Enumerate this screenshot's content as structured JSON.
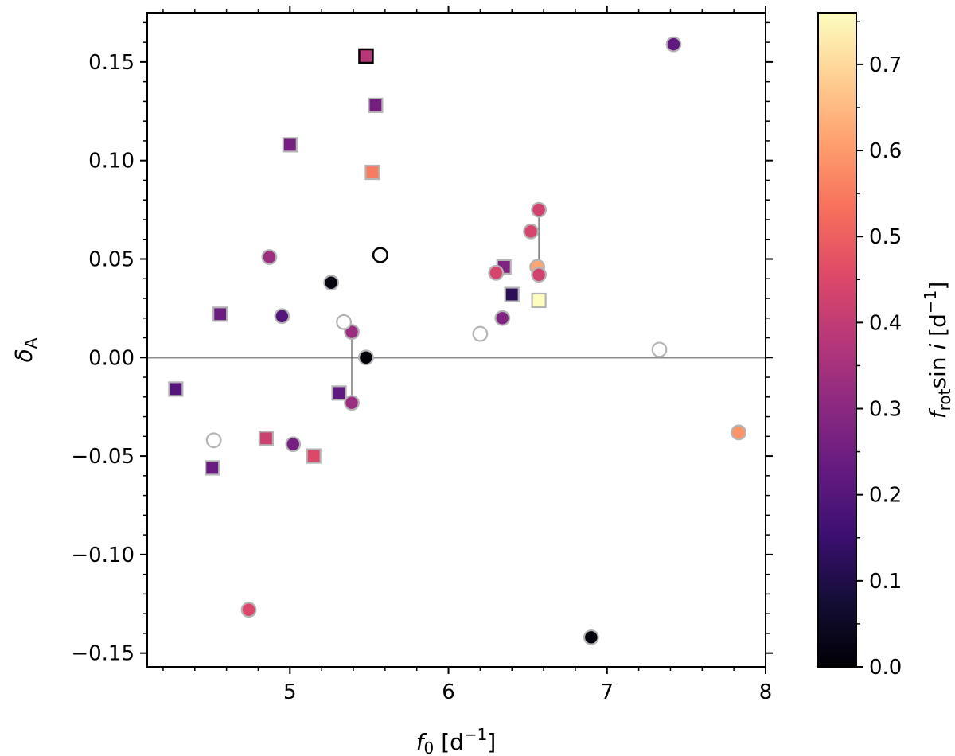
{
  "chart_data": {
    "type": "scatter",
    "title": "",
    "xlabel": {
      "var": "f",
      "sub": "0",
      "unit": "[d",
      "exp": "−1",
      "close": "]"
    },
    "ylabel": {
      "var": "δ",
      "sub": "A"
    },
    "xlim": [
      4.1,
      8.0
    ],
    "ylim": [
      -0.157,
      0.175
    ],
    "xticks": [
      {
        "value": 5,
        "label": "5"
      },
      {
        "value": 6,
        "label": "6"
      },
      {
        "value": 7,
        "label": "7"
      },
      {
        "value": 8,
        "label": "8"
      }
    ],
    "yticks": [
      {
        "value": 0.15,
        "label": "0.15"
      },
      {
        "value": 0.1,
        "label": "0.10"
      },
      {
        "value": 0.05,
        "label": "0.05"
      },
      {
        "value": 0.0,
        "label": "0.00"
      },
      {
        "value": -0.05,
        "label": "−0.05"
      },
      {
        "value": -0.1,
        "label": "−0.10"
      },
      {
        "value": -0.15,
        "label": "−0.15"
      }
    ],
    "reference_line_y": 0.0,
    "colorbar": {
      "label_var": "f",
      "label_sub": "rot",
      "label_mid": "sin ",
      "label_i": "i",
      "label_unit": " [d",
      "label_exp": "−1",
      "label_close": "]",
      "range": [
        0.0,
        0.76
      ],
      "ticks": [
        {
          "value": 0.0,
          "label": "0.0"
        },
        {
          "value": 0.1,
          "label": "0.1"
        },
        {
          "value": 0.2,
          "label": "0.2"
        },
        {
          "value": 0.3,
          "label": "0.3"
        },
        {
          "value": 0.4,
          "label": "0.4"
        },
        {
          "value": 0.5,
          "label": "0.5"
        },
        {
          "value": 0.6,
          "label": "0.6"
        },
        {
          "value": 0.7,
          "label": "0.7"
        }
      ],
      "colormap": "magma"
    },
    "points": [
      {
        "marker": "square",
        "x": 5.48,
        "y": 0.153,
        "c": 0.38,
        "edge": "black"
      },
      {
        "marker": "square",
        "x": 5.54,
        "y": 0.128,
        "c": 0.26,
        "edge": "gray"
      },
      {
        "marker": "square",
        "x": 5.0,
        "y": 0.108,
        "c": 0.26,
        "edge": "gray"
      },
      {
        "marker": "square",
        "x": 5.52,
        "y": 0.094,
        "c": 0.55,
        "edge": "gray"
      },
      {
        "marker": "square",
        "x": 6.35,
        "y": 0.046,
        "c": 0.28,
        "edge": "gray"
      },
      {
        "marker": "square",
        "x": 6.4,
        "y": 0.032,
        "c": 0.12,
        "edge": "gray"
      },
      {
        "marker": "square",
        "x": 6.57,
        "y": 0.029,
        "c": 0.76,
        "edge": "gray"
      },
      {
        "marker": "square",
        "x": 4.56,
        "y": 0.022,
        "c": 0.24,
        "edge": "gray"
      },
      {
        "marker": "square",
        "x": 4.28,
        "y": -0.016,
        "c": 0.2,
        "edge": "gray"
      },
      {
        "marker": "square",
        "x": 5.31,
        "y": -0.018,
        "c": 0.22,
        "edge": "gray"
      },
      {
        "marker": "square",
        "x": 4.85,
        "y": -0.041,
        "c": 0.42,
        "edge": "gray"
      },
      {
        "marker": "square",
        "x": 5.15,
        "y": -0.05,
        "c": 0.45,
        "edge": "gray"
      },
      {
        "marker": "square",
        "x": 4.51,
        "y": -0.056,
        "c": 0.24,
        "edge": "gray"
      },
      {
        "marker": "circle",
        "x": 7.42,
        "y": 0.159,
        "c": 0.22,
        "edge": "gray"
      },
      {
        "marker": "circle",
        "x": 6.57,
        "y": 0.075,
        "c": 0.43,
        "edge": "gray"
      },
      {
        "marker": "circle",
        "x": 6.52,
        "y": 0.064,
        "c": 0.44,
        "edge": "gray"
      },
      {
        "marker": "circle",
        "x": 4.87,
        "y": 0.051,
        "c": 0.33,
        "edge": "gray"
      },
      {
        "marker": "circle",
        "x": 6.56,
        "y": 0.046,
        "c": 0.62,
        "edge": "gray"
      },
      {
        "marker": "circle",
        "x": 6.3,
        "y": 0.043,
        "c": 0.44,
        "edge": "gray"
      },
      {
        "marker": "circle",
        "x": 6.57,
        "y": 0.042,
        "c": 0.43,
        "edge": "gray"
      },
      {
        "marker": "circle",
        "x": 5.26,
        "y": 0.038,
        "c": 0.02,
        "edge": "gray"
      },
      {
        "marker": "circle",
        "x": 4.95,
        "y": 0.021,
        "c": 0.2,
        "edge": "gray"
      },
      {
        "marker": "circle",
        "x": 6.34,
        "y": 0.02,
        "c": 0.28,
        "edge": "gray"
      },
      {
        "marker": "circle",
        "x": 5.39,
        "y": 0.013,
        "c": 0.33,
        "edge": "gray"
      },
      {
        "marker": "circle",
        "x": 5.48,
        "y": 0.0,
        "c": 0.01,
        "edge": "gray"
      },
      {
        "marker": "circle",
        "x": 5.39,
        "y": -0.023,
        "c": 0.33,
        "edge": "gray"
      },
      {
        "marker": "circle",
        "x": 5.02,
        "y": -0.044,
        "c": 0.26,
        "edge": "gray"
      },
      {
        "marker": "circle",
        "x": 7.83,
        "y": -0.038,
        "c": 0.59,
        "edge": "gray"
      },
      {
        "marker": "circle",
        "x": 4.74,
        "y": -0.128,
        "c": 0.45,
        "edge": "gray"
      },
      {
        "marker": "circle",
        "x": 6.9,
        "y": -0.142,
        "c": 0.01,
        "edge": "gray"
      },
      {
        "marker": "circle",
        "x": 5.57,
        "y": 0.052,
        "c": null,
        "edge": "black"
      },
      {
        "marker": "circle",
        "x": 5.34,
        "y": 0.018,
        "c": null,
        "edge": "gray"
      },
      {
        "marker": "circle",
        "x": 6.2,
        "y": 0.012,
        "c": null,
        "edge": "gray"
      },
      {
        "marker": "circle",
        "x": 7.33,
        "y": 0.004,
        "c": null,
        "edge": "gray"
      },
      {
        "marker": "circle",
        "x": 4.52,
        "y": -0.042,
        "c": null,
        "edge": "gray"
      }
    ],
    "connectors": [
      {
        "x": 5.39,
        "y1": 0.013,
        "y2": -0.023
      },
      {
        "x": 6.57,
        "y1": 0.075,
        "y2": 0.042
      }
    ]
  }
}
